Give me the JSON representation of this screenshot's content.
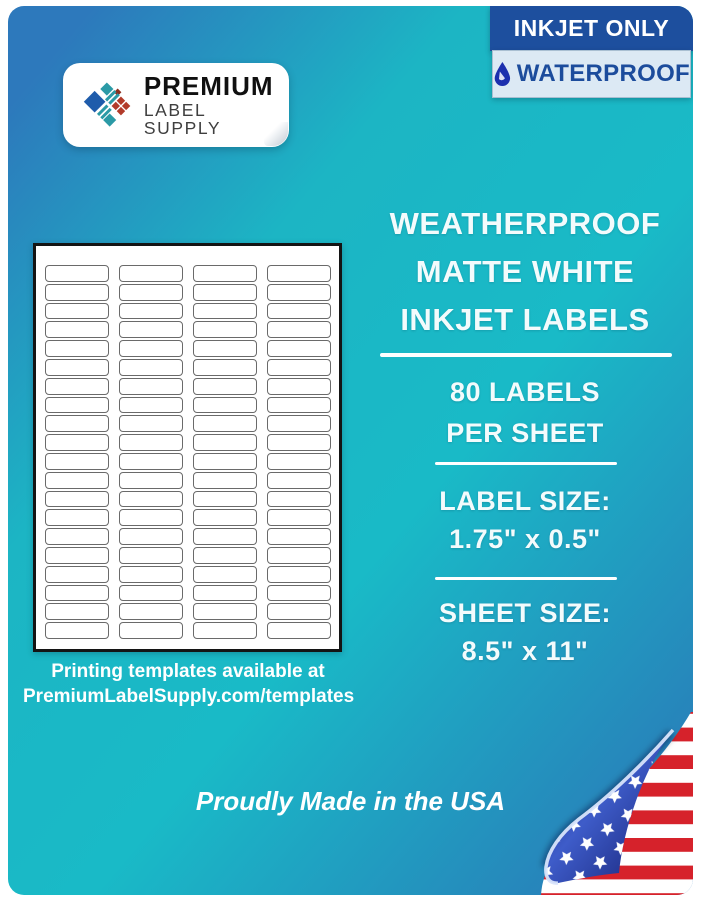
{
  "badges": {
    "inkjet": {
      "label": "INKJET ONLY",
      "bg": "#1d4f9e",
      "fg": "#ffffff"
    },
    "waterproof": {
      "label": "WATERPROOF",
      "bg": "#dce9f4",
      "fg": "#1c4c9c",
      "icon": "water-drop"
    }
  },
  "logo": {
    "name_top": "PREMIUM",
    "name_bottom": "LABEL SUPPLY"
  },
  "sheet": {
    "rows": 20,
    "columns": 4,
    "total_labels": 80
  },
  "template_note": {
    "line1": "Printing templates available at",
    "line2": "PremiumLabelSupply.com/templates"
  },
  "headline": {
    "line1": "WEATHERPROOF",
    "line2": "MATTE WHITE",
    "line3": "INKJET LABELS"
  },
  "specs": {
    "count_line1": "80 LABELS",
    "count_line2": "PER SHEET",
    "label_size_title": "LABEL SIZE:",
    "label_size_value": "1.75\" x 0.5\"",
    "sheet_size_title": "SHEET SIZE:",
    "sheet_size_value": "8.5\" x 11\""
  },
  "footer": {
    "made_in_prefix": "Proudly Made in the",
    "made_in_bold": "USA"
  },
  "colors": {
    "gradient_blue": "#2d79bc",
    "gradient_teal": "#19bac7",
    "badge_blue": "#1d4f9e",
    "flag_red": "#d6222b",
    "flag_star_blue": "#16207a",
    "logo_blue": "#1f5cab",
    "logo_teal": "#2b9aa6",
    "logo_red": "#b23b2a"
  }
}
